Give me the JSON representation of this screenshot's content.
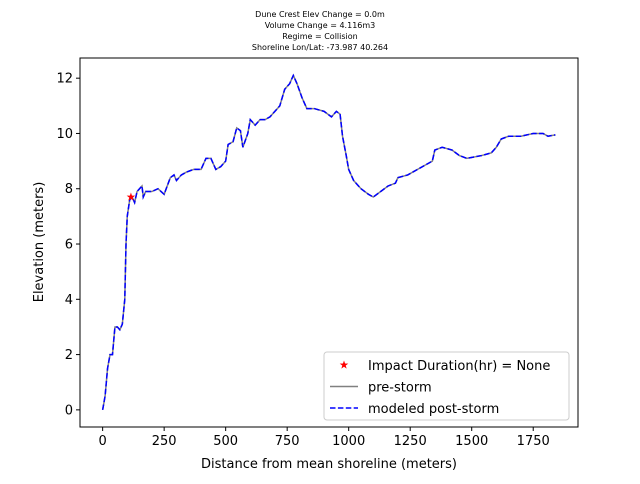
{
  "chart_data": {
    "type": "line",
    "title_lines": [
      "Dune Crest Elev Change = 0.0m",
      "Volume Change = 4.116m3",
      "Regime = Collision",
      "Shoreline Lon/Lat: -73.987 40.264"
    ],
    "x_label": "Distance from mean shoreline (meters)",
    "y_label": "Elevation (meters)",
    "xlim": [
      -92,
      1932
    ],
    "xticks": [
      0,
      250,
      500,
      750,
      1000,
      1250,
      1500,
      1750
    ],
    "ylim": [
      -0.62,
      12.73
    ],
    "yticks": [
      0,
      2,
      4,
      6,
      8,
      10,
      12
    ],
    "legend": "lower right",
    "x": [
      0,
      10,
      20,
      30,
      40,
      50,
      60,
      70,
      80,
      90,
      95,
      100,
      110,
      120,
      130,
      140,
      150,
      160,
      165,
      175,
      200,
      225,
      250,
      275,
      290,
      300,
      320,
      340,
      370,
      400,
      420,
      440,
      460,
      480,
      500,
      510,
      530,
      545,
      560,
      570,
      590,
      600,
      620,
      640,
      660,
      680,
      700,
      720,
      740,
      760,
      775,
      790,
      810,
      830,
      860,
      900,
      930,
      950,
      965,
      975,
      990,
      1000,
      1020,
      1050,
      1080,
      1100,
      1130,
      1160,
      1190,
      1200,
      1240,
      1280,
      1320,
      1340,
      1350,
      1380,
      1420,
      1450,
      1480,
      1540,
      1580,
      1600,
      1620,
      1650,
      1700,
      1750,
      1790,
      1810,
      1840
    ],
    "series": [
      {
        "name": "pre-storm",
        "color": "#808080",
        "dash": false,
        "values": [
          0,
          0.5,
          1.5,
          2.0,
          2.0,
          3.0,
          3.0,
          2.9,
          3.1,
          4.0,
          6.0,
          7.0,
          7.6,
          7.7,
          7.5,
          7.9,
          8.0,
          8.1,
          7.7,
          7.9,
          7.9,
          8.0,
          7.8,
          8.4,
          8.5,
          8.3,
          8.5,
          8.6,
          8.7,
          8.7,
          9.1,
          9.1,
          8.7,
          8.8,
          9.0,
          9.6,
          9.7,
          10.2,
          10.1,
          9.5,
          10.0,
          10.5,
          10.3,
          10.5,
          10.5,
          10.6,
          10.8,
          11.0,
          11.6,
          11.8,
          12.1,
          11.8,
          11.3,
          10.9,
          10.9,
          10.8,
          10.6,
          10.8,
          10.7,
          9.9,
          9.2,
          8.7,
          8.3,
          8.0,
          7.8,
          7.7,
          7.9,
          8.1,
          8.2,
          8.4,
          8.5,
          8.7,
          8.9,
          9.0,
          9.4,
          9.5,
          9.4,
          9.2,
          9.1,
          9.2,
          9.3,
          9.5,
          9.8,
          9.9,
          9.9,
          10.0,
          10.0,
          9.9,
          9.95
        ]
      },
      {
        "name": "modeled post-storm",
        "color": "#0000ff",
        "dash": true,
        "values": [
          0,
          0.5,
          1.5,
          2.0,
          2.0,
          3.0,
          3.0,
          2.9,
          3.1,
          4.0,
          6.0,
          7.0,
          7.6,
          7.7,
          7.5,
          7.9,
          8.0,
          8.1,
          7.7,
          7.9,
          7.9,
          8.0,
          7.8,
          8.4,
          8.5,
          8.3,
          8.5,
          8.6,
          8.7,
          8.7,
          9.1,
          9.1,
          8.7,
          8.8,
          9.0,
          9.6,
          9.7,
          10.2,
          10.1,
          9.5,
          10.0,
          10.5,
          10.3,
          10.5,
          10.5,
          10.6,
          10.8,
          11.0,
          11.6,
          11.8,
          12.1,
          11.8,
          11.3,
          10.9,
          10.9,
          10.8,
          10.6,
          10.8,
          10.7,
          9.9,
          9.2,
          8.7,
          8.3,
          8.0,
          7.8,
          7.7,
          7.9,
          8.1,
          8.2,
          8.4,
          8.5,
          8.7,
          8.9,
          9.0,
          9.4,
          9.5,
          9.4,
          9.2,
          9.1,
          9.2,
          9.3,
          9.5,
          9.8,
          9.9,
          9.9,
          10.0,
          10.0,
          9.9,
          9.95
        ]
      }
    ],
    "point": {
      "name": "Impact Duration(hr) = None",
      "color": "#ff0000",
      "x": 115,
      "y": 7.7
    }
  }
}
